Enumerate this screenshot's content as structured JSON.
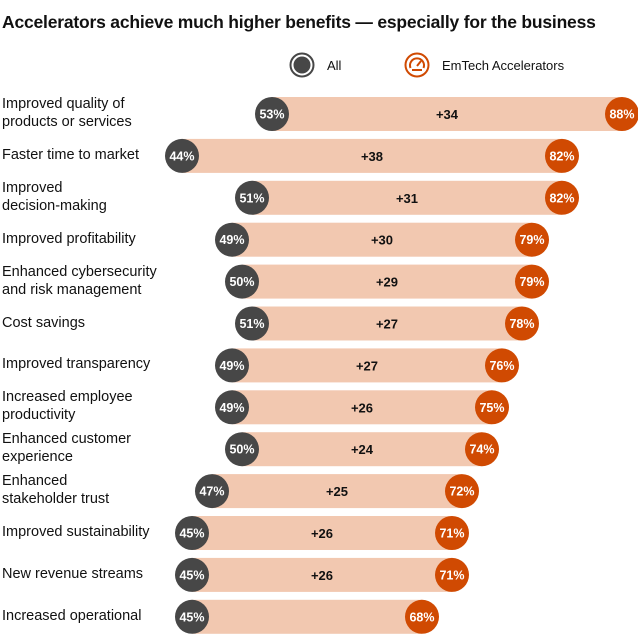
{
  "chart_data": {
    "type": "dumbbell",
    "title": "Accelerators achieve much higher benefits — especially for the business",
    "legend": [
      {
        "name": "All",
        "color": "#474747",
        "icon": "circle-icon"
      },
      {
        "name": "EmTech Accelerators",
        "color": "#d04a02",
        "icon": "speedometer-icon"
      }
    ],
    "legend_placement": "top",
    "bar_color": "#f2c8b0",
    "unit": "%",
    "categories": [
      "Improved quality of products or services",
      "Faster time to market",
      "Improved decision-making",
      "Improved profitability",
      "Enhanced cybersecurity and risk management",
      "Cost savings",
      "Improved transparency",
      "Increased employee productivity",
      "Enhanced customer experience",
      "Enhanced stakeholder trust",
      "Improved sustainability",
      "New revenue streams",
      "Increased operational"
    ],
    "label_lines": [
      [
        "Improved quality of",
        "products or services"
      ],
      [
        "Faster time to market"
      ],
      [
        "Improved",
        "decision-making"
      ],
      [
        "Improved profitability"
      ],
      [
        "Enhanced cybersecurity",
        "and risk management"
      ],
      [
        "Cost savings"
      ],
      [
        "Improved transparency"
      ],
      [
        "Increased employee",
        "productivity"
      ],
      [
        "Enhanced customer",
        "experience"
      ],
      [
        "Enhanced",
        "stakeholder trust"
      ],
      [
        "Improved sustainability"
      ],
      [
        "New revenue streams"
      ],
      [
        "Increased operational"
      ]
    ],
    "series": [
      {
        "name": "All",
        "values": [
          53,
          44,
          51,
          49,
          50,
          51,
          49,
          49,
          50,
          47,
          45,
          45,
          45
        ]
      },
      {
        "name": "EmTech Accelerators",
        "values": [
          88,
          82,
          82,
          79,
          79,
          78,
          76,
          75,
          74,
          72,
          71,
          71,
          68
        ]
      }
    ],
    "differences": [
      "+34",
      "+38",
      "+31",
      "+30",
      "+29",
      "+27",
      "+27",
      "+26",
      "+24",
      "+25",
      "+26",
      "+26",
      ""
    ]
  }
}
